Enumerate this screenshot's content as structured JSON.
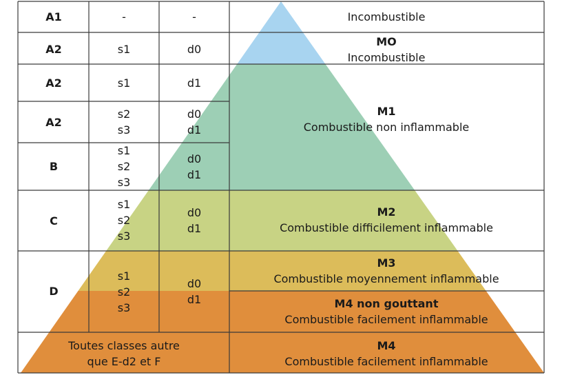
{
  "euro_rows": [
    {
      "class": "A1",
      "smoke": [
        "-"
      ],
      "drops": [
        "-"
      ]
    },
    {
      "class": "A2",
      "smoke": [
        "s1"
      ],
      "drops": [
        "d0"
      ]
    },
    {
      "class": "A2",
      "smoke": [
        "s1"
      ],
      "drops": [
        "d1"
      ]
    },
    {
      "class": "A2",
      "smoke": [
        "s2",
        "s3"
      ],
      "drops": [
        "d0",
        "d1"
      ]
    },
    {
      "class": "B",
      "smoke": [
        "s1",
        "s2",
        "s3"
      ],
      "drops": [
        "d0",
        "d1"
      ]
    },
    {
      "class": "C",
      "smoke": [
        "s1",
        "s2",
        "s3"
      ],
      "drops": [
        "d0",
        "d1"
      ]
    },
    {
      "class": "D",
      "smoke": [
        "s1",
        "s2",
        "s3"
      ],
      "drops": [
        "d0",
        "d1"
      ]
    }
  ],
  "bottom_left": [
    "Toutes classes autre",
    "que E-d2 et F"
  ],
  "french_rows": [
    {
      "code": "",
      "desc": "Incombustible"
    },
    {
      "code": "MO",
      "desc": "Incombustible"
    },
    {
      "code": "M1",
      "desc": "Combustible non inflammable"
    },
    {
      "code": "M2",
      "desc": "Combustible difficilement inflammable"
    },
    {
      "code": "M3",
      "desc": "Combustible moyennement inflammable"
    },
    {
      "code": "M4 non gouttant",
      "desc": "Combustible facilement inflammable"
    },
    {
      "code": "M4",
      "desc": "Combustible facilement inflammable"
    }
  ],
  "colors": {
    "incombustible": "#a8d4f0",
    "m1": "#9dcfb5",
    "m2": "#c8d384",
    "m3": "#dcbc5a",
    "m4": "#e08e3c",
    "border": "#3a3a3a"
  }
}
